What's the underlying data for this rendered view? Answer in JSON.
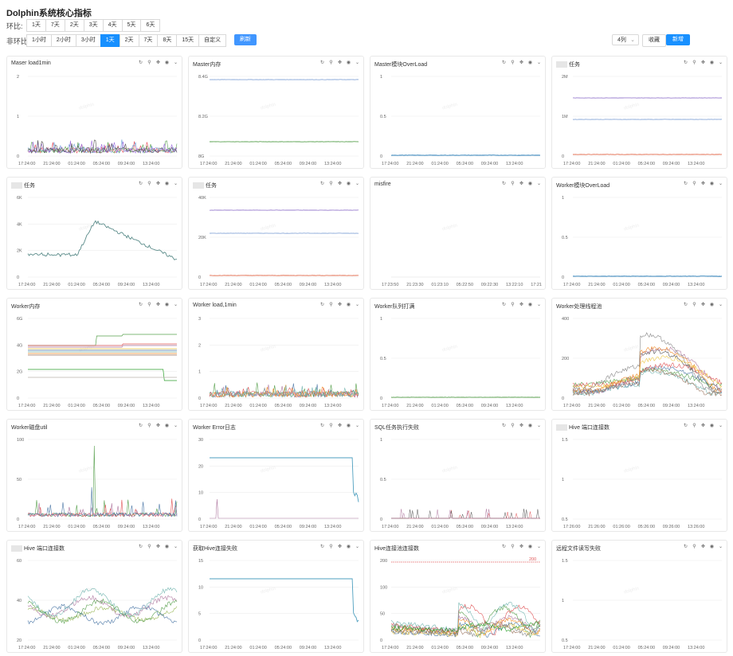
{
  "page": {
    "title": "Dolphin系统核心指标",
    "ring_label": "环比:",
    "ring_options": [
      "1天",
      "7天",
      "2天",
      "3天",
      "4天",
      "5天",
      "6天"
    ],
    "nonring_label": "非环比:",
    "nonring_options": [
      "1小时",
      "2小时",
      "3小时",
      "1天",
      "2天",
      "7天",
      "8天",
      "15天",
      "自定义"
    ],
    "nonring_active": "1天",
    "refresh_label": "刷新",
    "columns_select": "4列",
    "favorite_label": "收藏",
    "add_label": "新增",
    "watermark": "dolphin"
  },
  "icons": [
    "refresh-icon",
    "link-icon",
    "move-icon",
    "eye-icon",
    "chevron-down-icon"
  ],
  "panels": [
    {
      "title": "Maser load1min",
      "masked": false,
      "yticks": [
        "0",
        "1",
        "2"
      ],
      "ylim": [
        0,
        2
      ],
      "xticks": [
        "17:24:00",
        "21:24:00",
        "01:24:00",
        "05:24:00",
        "09:24:00",
        "13:24:00"
      ],
      "kind": "noise",
      "base": 0.3,
      "amp": 0.8,
      "series": 5,
      "colors": [
        "#e74c5a",
        "#6f9fd8",
        "#59a14f",
        "#9c6ade",
        "#555"
      ]
    },
    {
      "title": "Master内存",
      "masked": false,
      "yticks": [
        "8G",
        "8.2G",
        "8.4G"
      ],
      "ylim": [
        0,
        1
      ],
      "xticks": [
        "17:24:00",
        "21:24:00",
        "01:24:00",
        "05:24:00",
        "09:24:00",
        "13:24:00"
      ],
      "kind": "flat",
      "levels": [
        0.96,
        0.18
      ],
      "colors": [
        "#8aa8d8",
        "#59a14f"
      ]
    },
    {
      "title": "Master模块OverLoad",
      "masked": false,
      "yticks": [
        "0",
        "0.5",
        "1"
      ],
      "ylim": [
        0,
        1
      ],
      "xticks": [
        "17:24:00",
        "21:24:00",
        "01:24:00",
        "05:24:00",
        "09:24:00",
        "13:24:00"
      ],
      "kind": "flat",
      "levels": [
        0.01
      ],
      "colors": [
        "#1f77b4"
      ]
    },
    {
      "title": "任务",
      "masked": true,
      "yticks": [
        "0",
        "1M",
        "2M"
      ],
      "ylim": [
        0,
        1
      ],
      "xticks": [
        "17:24:00",
        "21:24:00",
        "01:24:00",
        "05:24:00",
        "09:24:00",
        "13:24:00"
      ],
      "kind": "flat",
      "levels": [
        0.73,
        0.46,
        0.02
      ],
      "colors": [
        "#9a7fcf",
        "#8aa8d8",
        "#e26a4b"
      ]
    },
    {
      "title": "任务",
      "masked": true,
      "yticks": [
        "0",
        "2K",
        "4K",
        "6K"
      ],
      "ylim": [
        0,
        6000
      ],
      "xticks": [
        "17:24:00",
        "21:24:00",
        "01:24:00",
        "05:24:00",
        "09:24:00",
        "13:24:00"
      ],
      "kind": "hump",
      "colors": [
        "#5b8c8a"
      ]
    },
    {
      "title": "任务",
      "masked": true,
      "yticks": [
        "0",
        "20K",
        "40K"
      ],
      "ylim": [
        0,
        1
      ],
      "xticks": [
        "17:24:00",
        "21:24:00",
        "01:24:00",
        "05:24:00",
        "09:24:00",
        "13:24:00"
      ],
      "kind": "flat",
      "levels": [
        0.84,
        0.55,
        0.02
      ],
      "colors": [
        "#9a7fcf",
        "#8aa8d8",
        "#e26a4b"
      ]
    },
    {
      "title": "misfire",
      "masked": false,
      "yticks": [],
      "ylim": [
        0,
        1
      ],
      "xticks": [
        "17:23:50",
        "21:23:30",
        "01:23:10",
        "05:22:50",
        "09:22:30",
        "13:22:10",
        "17:21"
      ],
      "kind": "none",
      "colors": []
    },
    {
      "title": "Worker模块OverLoad",
      "masked": false,
      "yticks": [
        "0",
        "0.5",
        "1"
      ],
      "ylim": [
        0,
        1
      ],
      "xticks": [
        "17:24:00",
        "21:24:00",
        "01:24:00",
        "05:24:00",
        "09:24:00",
        "13:24:00"
      ],
      "kind": "flat",
      "levels": [
        0.01
      ],
      "colors": [
        "#1f77b4"
      ]
    },
    {
      "title": "Worker内存",
      "masked": false,
      "yticks": [
        "0",
        "2G",
        "4G",
        "6G"
      ],
      "ylim": [
        0,
        1
      ],
      "xticks": [
        "17:24:00",
        "21:24:00",
        "01:24:00",
        "05:24:00",
        "09:24:00",
        "13:24:00"
      ],
      "kind": "bands",
      "colors": [
        "#59a14f",
        "#e15759",
        "#b07aa1",
        "#edc948",
        "#4e79a7",
        "#76b7b2",
        "#f28e2b",
        "#9c755f",
        "#2ca02c",
        "#bab0ac"
      ]
    },
    {
      "title": "Worker load,1min",
      "masked": false,
      "yticks": [
        "0",
        "1",
        "2",
        "3"
      ],
      "ylim": [
        0,
        3
      ],
      "xticks": [
        "17:24:00",
        "21:24:00",
        "01:24:00",
        "05:24:00",
        "09:24:00",
        "13:24:00"
      ],
      "kind": "noise",
      "base": 0.2,
      "amp": 1.9,
      "series": 6,
      "colors": [
        "#4e79a7",
        "#59a14f",
        "#e15759",
        "#b07aa1",
        "#f28e2b",
        "#76b7b2"
      ]
    },
    {
      "title": "Worker队列打满",
      "masked": false,
      "yticks": [
        "0",
        "0.5",
        "1"
      ],
      "ylim": [
        0,
        1
      ],
      "xticks": [
        "17:24:00",
        "21:24:00",
        "01:24:00",
        "05:24:00",
        "09:24:00",
        "13:24:00"
      ],
      "kind": "flat",
      "levels": [
        0.01
      ],
      "colors": [
        "#59a14f"
      ]
    },
    {
      "title": "Worker处理线程池",
      "masked": false,
      "yticks": [
        "0",
        "200",
        "400"
      ],
      "ylim": [
        0,
        400
      ],
      "xticks": [
        "17:24:00",
        "21:24:00",
        "01:24:00",
        "05:24:00",
        "09:24:00",
        "13:24:00"
      ],
      "kind": "wave",
      "series": 10,
      "colors": [
        "#555",
        "#4e79a7",
        "#59a14f",
        "#e15759",
        "#b07aa1",
        "#f28e2b",
        "#76b7b2",
        "#edc948",
        "#9c755f",
        "#888"
      ]
    },
    {
      "title": "Worker磁盘util",
      "masked": false,
      "yticks": [
        "0",
        "50",
        "100"
      ],
      "ylim": [
        0,
        100
      ],
      "xticks": [
        "17:24:00",
        "21:24:00",
        "01:24:00",
        "05:24:00",
        "09:24:00",
        "13:24:00"
      ],
      "kind": "spikes",
      "colors": [
        "#59a14f",
        "#e15759",
        "#b07aa1",
        "#4e79a7",
        "#f28e2b"
      ]
    },
    {
      "title": "Worker Error日志",
      "masked": false,
      "yticks": [
        "0",
        "10",
        "20",
        "30"
      ],
      "ylim": [
        0,
        30
      ],
      "xticks": [
        "17:24:00",
        "21:24:00",
        "01:24:00",
        "05:24:00",
        "09:24:00",
        "13:24:00"
      ],
      "kind": "drop",
      "level": 0.77,
      "colors": [
        "#4e9fbf",
        "#b07aa1"
      ]
    },
    {
      "title": "SQL任务执行失败",
      "masked": false,
      "yticks": [
        "0",
        "0.5",
        "1"
      ],
      "ylim": [
        0,
        1
      ],
      "xticks": [
        "17:24:00",
        "21:24:00",
        "01:24:00",
        "05:24:00",
        "09:24:00",
        "13:24:00"
      ],
      "kind": "sparse",
      "colors": [
        "#e15759",
        "#555",
        "#b07aa1"
      ]
    },
    {
      "title": "Hive 端口连接数",
      "masked": true,
      "yticks": [
        "0.5",
        "1",
        "1.5"
      ],
      "ylim": [
        0.5,
        1.5
      ],
      "xticks": [
        "17:26:00",
        "21:26:00",
        "01:26:00",
        "05:26:00",
        "09:26:00",
        "13:26:00"
      ],
      "kind": "none",
      "colors": []
    },
    {
      "title": "Hive 端口连接数",
      "masked": true,
      "yticks": [
        "20",
        "40",
        "60"
      ],
      "ylim": [
        20,
        60
      ],
      "xticks": [
        "17:24:00",
        "21:24:00",
        "01:24:00",
        "05:24:00",
        "09:24:00",
        "13:24:00"
      ],
      "kind": "wave2",
      "series": 5,
      "colors": [
        "#9bb85b",
        "#4e79a7",
        "#b07aa1",
        "#59a14f",
        "#76b7b2"
      ]
    },
    {
      "title": "获取Hive连接失败",
      "masked": false,
      "yticks": [
        "0",
        "5",
        "10",
        "15"
      ],
      "ylim": [
        0,
        15
      ],
      "xticks": [
        "17:24:00",
        "21:24:00",
        "01:24:00",
        "05:24:00",
        "09:24:00",
        "13:24:00"
      ],
      "kind": "drop",
      "level": 0.77,
      "colors": [
        "#4e9fbf"
      ]
    },
    {
      "title": "Hive连接池连接数",
      "masked": false,
      "yticks": [
        "0",
        "50",
        "100",
        "200"
      ],
      "ylim": [
        0,
        200
      ],
      "xticks": [
        "17:24:00",
        "21:24:00",
        "01:24:00",
        "05:24:00",
        "09:24:00",
        "13:24:00"
      ],
      "kind": "pool",
      "threshold": "200",
      "series": 10,
      "colors": [
        "#4e79a7",
        "#59a14f",
        "#e15759",
        "#b07aa1",
        "#f28e2b",
        "#76b7b2",
        "#edc948",
        "#9c755f",
        "#888",
        "#2ca02c"
      ]
    },
    {
      "title": "远程文件读写失败",
      "masked": false,
      "yticks": [
        "0.5",
        "1",
        "1.5"
      ],
      "ylim": [
        0.5,
        1.5
      ],
      "xticks": [
        "17:24:00",
        "21:24:00",
        "01:24:00",
        "05:24:00",
        "09:24:00",
        "13:24:00"
      ],
      "kind": "none",
      "colors": []
    }
  ]
}
